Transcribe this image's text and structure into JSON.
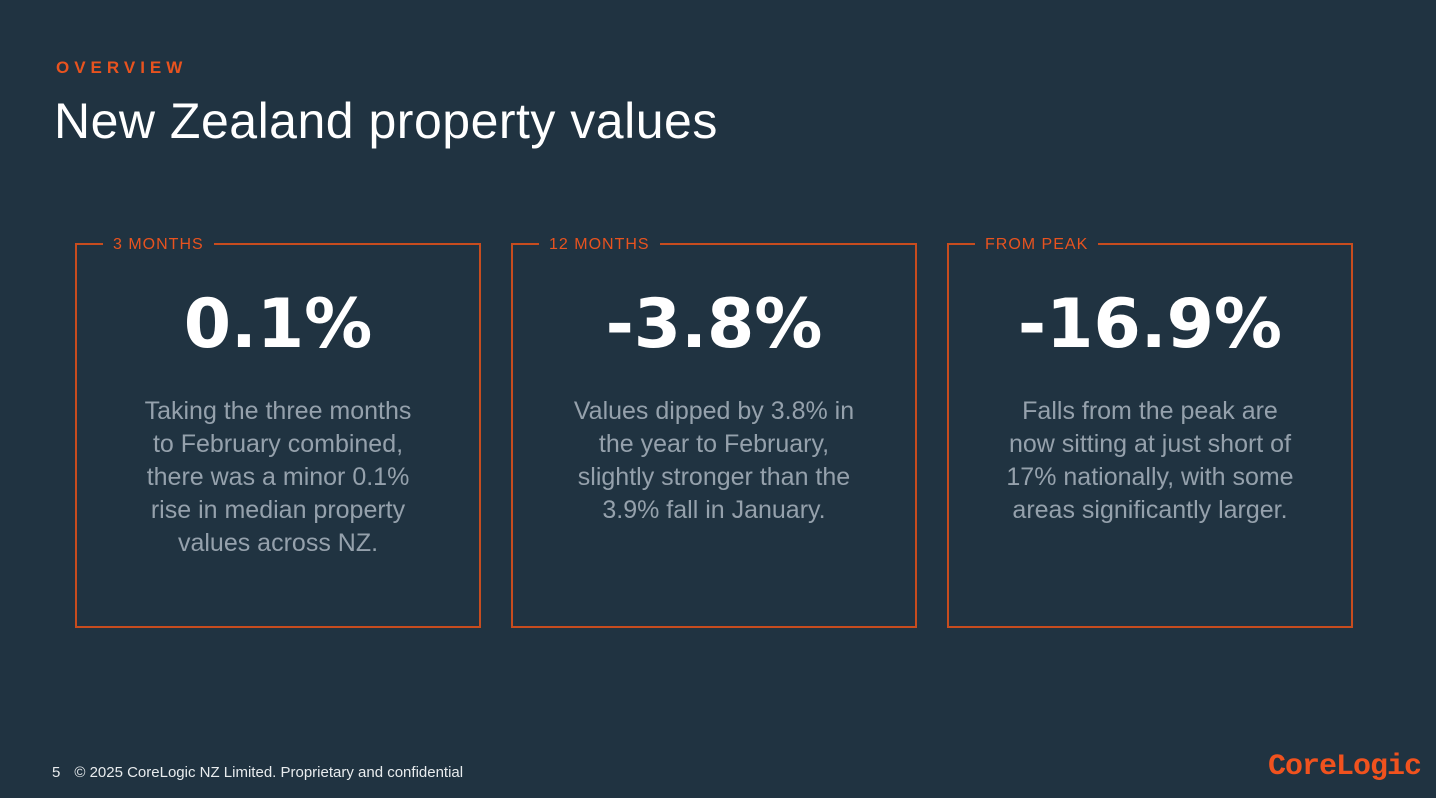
{
  "slide": {
    "eyebrow": "OVERVIEW",
    "title": "New Zealand property values",
    "cards": [
      {
        "label": "3 MONTHS",
        "value": "0.1%",
        "description": "Taking the three months\nto February combined,\nthere was a minor 0.1%\nrise in median property\nvalues across NZ."
      },
      {
        "label": "12 MONTHS",
        "value": "-3.8%",
        "description": "Values dipped by 3.8% in\nthe year to February,\nslightly stronger than the\n3.9% fall in January."
      },
      {
        "label": "FROM PEAK",
        "value": "-16.9%",
        "description": "Falls from the peak are\nnow sitting at just short of\n17% nationally, with some\nareas significantly larger."
      }
    ],
    "footer": {
      "page_number": "5",
      "copyright": "© 2025 CoreLogic NZ Limited. Proprietary and confidential",
      "logo_text": "CoreLogic"
    },
    "colors": {
      "background": "#203341",
      "accent_orange": "#E8531F",
      "border_orange": "#C74C1E",
      "logo_orange": "#F0521E",
      "body_text": "#95A1AC",
      "value_text": "#FFFFFF",
      "footer_text": "#E8ECEE"
    }
  }
}
